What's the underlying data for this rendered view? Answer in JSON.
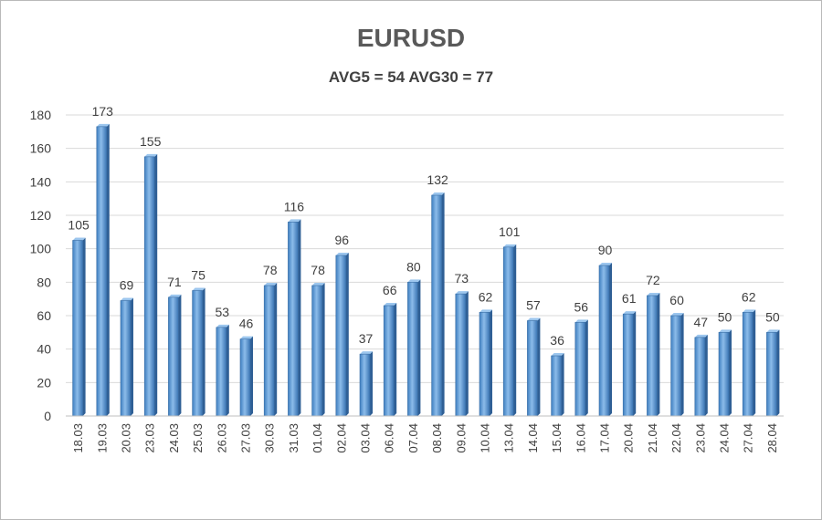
{
  "chart_data": {
    "type": "bar",
    "title": "EURUSD",
    "subtitle": "AVG5 = 54 AVG30 = 77",
    "xlabel": "",
    "ylabel": "",
    "ylim": [
      0,
      180
    ],
    "yticks": [
      0,
      20,
      40,
      60,
      80,
      100,
      120,
      140,
      160,
      180
    ],
    "grid": true,
    "bar_color": "#5b9bd5",
    "categories": [
      "18.03",
      "19.03",
      "20.03",
      "23.03",
      "24.03",
      "25.03",
      "26.03",
      "27.03",
      "30.03",
      "31.03",
      "01.04",
      "02.04",
      "03.04",
      "06.04",
      "07.04",
      "08.04",
      "09.04",
      "10.04",
      "13.04",
      "14.04",
      "15.04",
      "16.04",
      "17.04",
      "20.04",
      "21.04",
      "22.04",
      "23.04",
      "24.04",
      "27.04",
      "28.04"
    ],
    "values": [
      105,
      173,
      69,
      155,
      71,
      75,
      53,
      46,
      78,
      116,
      78,
      96,
      37,
      66,
      80,
      132,
      73,
      62,
      101,
      57,
      36,
      56,
      90,
      61,
      72,
      60,
      47,
      50,
      62,
      50
    ]
  }
}
